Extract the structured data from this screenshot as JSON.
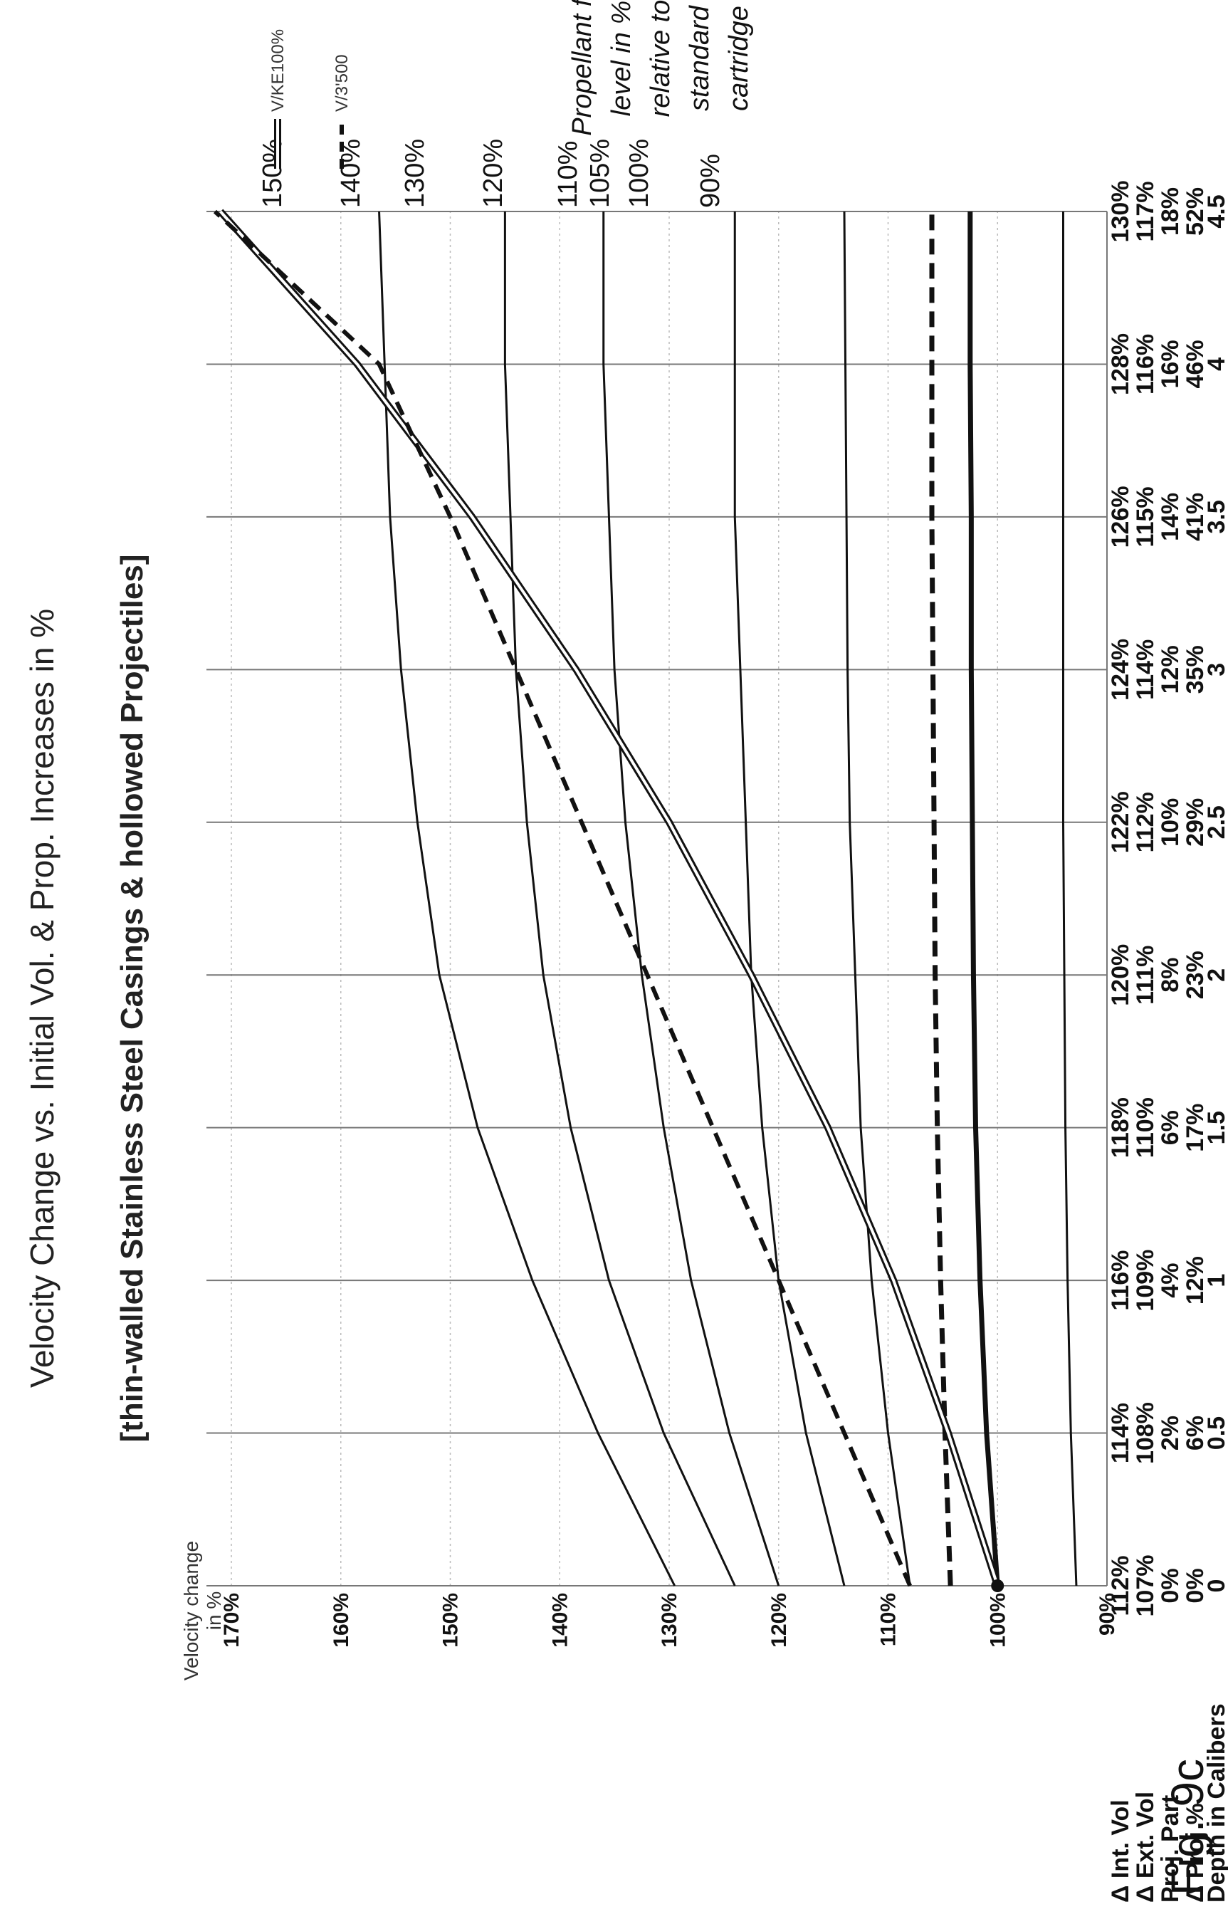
{
  "figure_label": "Fig. 9c",
  "chart_data": {
    "type": "line",
    "title": "Velocity Change  vs. Initial Vol. & Prop. Increases in %",
    "subtitle": "[thin-walled Stainless Steel Casings & hollowed Projectiles]",
    "ylabel_line1": "Velocity change",
    "ylabel_line2": "in %",
    "ylim": [
      90,
      170
    ],
    "ytick_labels": [
      "170%",
      "160%",
      "150%",
      "140%",
      "130%",
      "120%",
      "110%",
      "100%",
      "90%"
    ],
    "x": [
      0,
      0.5,
      1,
      1.5,
      2,
      2.5,
      3,
      3.5,
      4,
      4.5
    ],
    "xlim": [
      0,
      4.5
    ],
    "grid": true,
    "table": {
      "rows": [
        {
          "label": "Δ Int. Vol",
          "values": [
            "112%",
            "114%",
            "116%",
            "118%",
            "120%",
            "122%",
            "124%",
            "126%",
            "128%",
            "130%"
          ]
        },
        {
          "label": "Δ Ext. Vol",
          "values": [
            "107%",
            "108%",
            "109%",
            "110%",
            "111%",
            "112%",
            "114%",
            "115%",
            "116%",
            "117%"
          ]
        },
        {
          "label": "Proj. Part",
          "values": [
            "0%",
            "2%",
            "4%",
            "6%",
            "8%",
            "10%",
            "12%",
            "14%",
            "16%",
            "18%"
          ]
        },
        {
          "label": "Δ Proj %",
          "values": [
            "0%",
            "6%",
            "12%",
            "17%",
            "23%",
            "29%",
            "35%",
            "41%",
            "46%",
            "52%"
          ]
        },
        {
          "label": "Depth in Calibers",
          "values": [
            "0",
            "0.5",
            "1",
            "1.5",
            "2",
            "2.5",
            "3",
            "3.5",
            "4",
            "4.5"
          ]
        }
      ]
    },
    "fill_levels_title": [
      "Propellant fill",
      "level in %",
      "relative to",
      "standard",
      "cartridge"
    ],
    "fill_levels": [
      {
        "label": "150%",
        "values": [
          129.5,
          136.5,
          142.5,
          147.5,
          151,
          153,
          154.5,
          155.5,
          156,
          156.5
        ]
      },
      {
        "label": "140%",
        "values": [
          124,
          130.5,
          135.5,
          139,
          141.5,
          143,
          144,
          144.5,
          145,
          145
        ]
      },
      {
        "label": "130%",
        "values": [
          120,
          124.5,
          128,
          130.5,
          132.5,
          134,
          135,
          135.5,
          136,
          136
        ]
      },
      {
        "label": "120%",
        "values": [
          114,
          117.5,
          120,
          121.5,
          122.5,
          123,
          123.5,
          124,
          124,
          124
        ]
      },
      {
        "label": "110%",
        "values": [
          108,
          110,
          111.5,
          112.5,
          113,
          113.5,
          113.7,
          113.8,
          113.9,
          114
        ]
      },
      {
        "label": "105%",
        "values": [
          104.3,
          104.8,
          105.2,
          105.5,
          105.7,
          105.8,
          105.9,
          106,
          106,
          106
        ]
      },
      {
        "label": "100%",
        "values": [
          100,
          101,
          101.6,
          102,
          102.2,
          102.3,
          102.4,
          102.4,
          102.5,
          102.5
        ]
      },
      {
        "label": "90%",
        "values": [
          92.8,
          93.3,
          93.6,
          93.8,
          93.9,
          94,
          94,
          94,
          94,
          94
        ]
      }
    ],
    "series": [
      {
        "name": "V/KE100%",
        "style": "double",
        "values": [
          100,
          104.5,
          109.5,
          115.5,
          122.5,
          130,
          138.5,
          148,
          158.5,
          171
        ]
      },
      {
        "name": "V/3'500",
        "style": "dashed",
        "values": [
          108,
          114,
          120,
          126,
          132,
          138,
          144,
          150,
          156.5,
          171.5
        ]
      }
    ],
    "legend": "top-right",
    "colors": {
      "line": "#111111",
      "grid": "#777777",
      "grid_minor": "#bbbbbb",
      "double_inner": "#ffffff"
    }
  }
}
